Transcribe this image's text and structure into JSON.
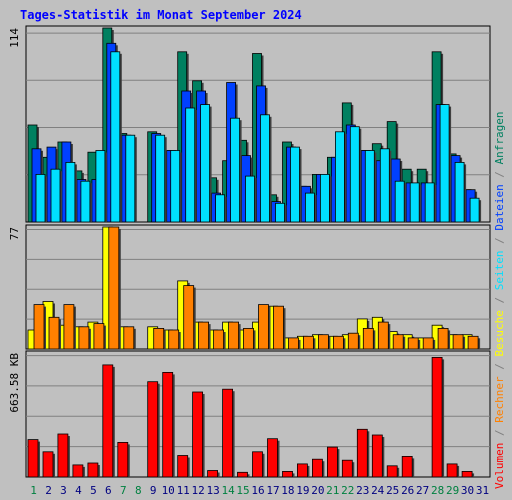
{
  "chart_data": {
    "type": "bar",
    "title": "Tages-Statistik im Monat September 2024",
    "categories": [
      "1",
      "2",
      "3",
      "4",
      "5",
      "6",
      "7",
      "8",
      "9",
      "10",
      "11",
      "12",
      "13",
      "14",
      "15",
      "16",
      "17",
      "18",
      "19",
      "20",
      "21",
      "22",
      "23",
      "24",
      "25",
      "26",
      "27",
      "28",
      "29",
      "30",
      "31"
    ],
    "weekend_days": [
      "1",
      "7",
      "8",
      "14",
      "15",
      "21",
      "22",
      "28",
      "29"
    ],
    "panels": [
      {
        "axis_max_label": "114",
        "ylim": [
          0,
          114
        ],
        "series": [
          {
            "name": "Anfragen",
            "color": "#008060",
            "values": [
              57,
              38,
              47,
              30,
              41,
              114,
              52,
              0,
              53,
              42,
              100,
              83,
              26,
              36,
              48,
              99,
              16,
              47,
              21,
              28,
              38,
              70,
              42,
              46,
              59,
              31,
              31,
              100,
              40,
              19,
              0
            ]
          },
          {
            "name": "Dateien",
            "color": "#0040ff",
            "values": [
              43,
              44,
              47,
              25,
              25,
              105,
              51,
              0,
              52,
              42,
              77,
              77,
              17,
              82,
              39,
              80,
              12,
              44,
              21,
              28,
              38,
              57,
              42,
              36,
              37,
              23,
              23,
              69,
              39,
              19,
              0
            ]
          },
          {
            "name": "Seiten",
            "color": "#00e0ff",
            "values": [
              28,
              31,
              35,
              24,
              42,
              100,
              51,
              0,
              51,
              42,
              67,
              69,
              16,
              61,
              27,
              63,
              11,
              44,
              17,
              28,
              53,
              56,
              42,
              43,
              24,
              23,
              23,
              69,
              35,
              14,
              0
            ]
          }
        ]
      },
      {
        "axis_max_label": "77",
        "ylim": [
          0,
          77
        ],
        "series": [
          {
            "name": "Besuche",
            "color": "#ffff00",
            "values": [
              12,
              30,
              15,
              14,
              17,
              77,
              14,
              0,
              14,
              12,
              43,
              17,
              12,
              17,
              12,
              17,
              27,
              7,
              8,
              9,
              8,
              9,
              19,
              20,
              11,
              9,
              7,
              15,
              9,
              9,
              0
            ]
          },
          {
            "name": "Rechner",
            "color": "#ff8000",
            "values": [
              28,
              20,
              28,
              14,
              16,
              77,
              14,
              0,
              13,
              12,
              40,
              17,
              12,
              17,
              13,
              28,
              27,
              7,
              8,
              9,
              8,
              10,
              13,
              17,
              9,
              7,
              7,
              13,
              9,
              8,
              0
            ]
          }
        ]
      },
      {
        "axis_max_label": "663.58 KB",
        "ylim": [
          0,
          663.58
        ],
        "series": [
          {
            "name": "Volumen",
            "color": "#ff0000",
            "values": [
              200,
              135,
              230,
              65,
              75,
              600,
              185,
              0,
              510,
              560,
              115,
              455,
              35,
              470,
              25,
              135,
              205,
              30,
              70,
              95,
              160,
              90,
              255,
              225,
              60,
              110,
              0,
              640,
              70,
              30,
              0
            ]
          }
        ]
      }
    ],
    "right_legend": [
      {
        "text": "Volumen",
        "color": "#ff0000"
      },
      {
        "text": " / ",
        "color": "#808080"
      },
      {
        "text": "Rechner",
        "color": "#ff8000"
      },
      {
        "text": " / ",
        "color": "#808080"
      },
      {
        "text": "Besuche",
        "color": "#ffff00"
      },
      {
        "text": " / ",
        "color": "#808080"
      },
      {
        "text": "Seiten",
        "color": "#00e0ff"
      },
      {
        "text": " / ",
        "color": "#808080"
      },
      {
        "text": "Dateien",
        "color": "#0040ff"
      },
      {
        "text": " / ",
        "color": "#808080"
      },
      {
        "text": "Anfragen",
        "color": "#008060"
      }
    ],
    "colors": {
      "background": "#c0c0c0",
      "grid": "#808080",
      "title": "#0000ff",
      "weekday_label": "#000080",
      "weekend_label": "#008040"
    },
    "grid": true
  }
}
